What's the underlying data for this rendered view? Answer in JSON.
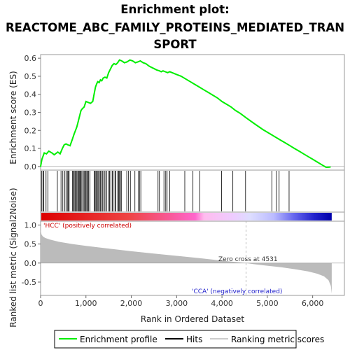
{
  "chart_data": {
    "type": "line",
    "title_lines": [
      "Enrichment plot:",
      "REACTOME_ABC_FAMILY_PROTEINS_MEDIATED_TRAN",
      "SPORT"
    ],
    "es_panel": {
      "ylabel": "Enrichment score (ES)",
      "ylim": [
        -0.02,
        0.62
      ],
      "yticks": [
        0.0,
        0.1,
        0.2,
        0.3,
        0.4,
        0.5,
        0.6
      ],
      "ytick_labels": [
        "0.0",
        "0.1",
        "0.2",
        "0.3",
        "0.4",
        "0.5",
        "0.6"
      ],
      "series": [
        {
          "name": "Enrichment profile",
          "color": "#00ee00",
          "x": [
            0,
            30,
            80,
            130,
            180,
            250,
            300,
            380,
            430,
            480,
            520,
            560,
            600,
            650,
            700,
            740,
            770,
            800,
            830,
            860,
            890,
            920,
            960,
            1000,
            1050,
            1100,
            1150,
            1180,
            1210,
            1240,
            1260,
            1290,
            1320,
            1350,
            1380,
            1420,
            1460,
            1500,
            1540,
            1580,
            1620,
            1660,
            1700,
            1740,
            1790,
            1850,
            1910,
            1970,
            2030,
            2090,
            2150,
            2200,
            2260,
            2320,
            2400,
            2480,
            2560,
            2620,
            2660,
            2700,
            2750,
            2800,
            2850,
            2900,
            3000,
            3100,
            3200,
            3300,
            3400,
            3500,
            3600,
            3700,
            3800,
            3900,
            4000,
            4100,
            4200,
            4300,
            4400,
            4531,
            4700,
            4900,
            5000,
            5100,
            5200,
            5300,
            5400,
            5500,
            5600,
            5700,
            5800,
            5900,
            6000,
            6100,
            6200,
            6300,
            6390
          ],
          "values": [
            0.0,
            0.04,
            0.075,
            0.07,
            0.085,
            0.075,
            0.065,
            0.08,
            0.07,
            0.1,
            0.12,
            0.125,
            0.12,
            0.115,
            0.15,
            0.18,
            0.2,
            0.22,
            0.25,
            0.28,
            0.31,
            0.32,
            0.33,
            0.36,
            0.355,
            0.35,
            0.36,
            0.4,
            0.44,
            0.46,
            0.47,
            0.465,
            0.48,
            0.475,
            0.49,
            0.495,
            0.49,
            0.52,
            0.54,
            0.56,
            0.57,
            0.565,
            0.575,
            0.59,
            0.585,
            0.575,
            0.58,
            0.59,
            0.585,
            0.575,
            0.58,
            0.585,
            0.575,
            0.57,
            0.555,
            0.545,
            0.535,
            0.53,
            0.525,
            0.53,
            0.525,
            0.52,
            0.525,
            0.52,
            0.51,
            0.5,
            0.485,
            0.47,
            0.455,
            0.44,
            0.425,
            0.41,
            0.395,
            0.38,
            0.36,
            0.345,
            0.33,
            0.31,
            0.295,
            0.27,
            0.24,
            0.205,
            0.19,
            0.175,
            0.16,
            0.145,
            0.13,
            0.115,
            0.1,
            0.085,
            0.07,
            0.055,
            0.04,
            0.025,
            0.01,
            -0.005,
            -0.003
          ]
        }
      ]
    },
    "hits": {
      "name": "Hits",
      "color": "#000000",
      "x": [
        20,
        50,
        70,
        120,
        160,
        370,
        450,
        490,
        530,
        560,
        590,
        610,
        630,
        700,
        720,
        740,
        760,
        780,
        800,
        820,
        840,
        860,
        870,
        890,
        910,
        940,
        960,
        980,
        1000,
        1020,
        1040,
        1060,
        1090,
        1180,
        1200,
        1220,
        1240,
        1250,
        1270,
        1300,
        1320,
        1350,
        1370,
        1400,
        1420,
        1460,
        1490,
        1520,
        1550,
        1580,
        1600,
        1640,
        1660,
        1700,
        1720,
        1740,
        1760,
        1780,
        1900,
        1940,
        1980,
        2080,
        2160,
        2180,
        2210,
        2590,
        2620,
        2720,
        2760,
        2790,
        2850,
        3180,
        3360,
        3510,
        3990,
        4240,
        4520,
        5100,
        5200,
        5260,
        5480
      ]
    },
    "rank_metric": {
      "name": "Ranking metric scores",
      "color": "#bbbbbb",
      "ylabel": "Ranked list metric (Signal2Noise)",
      "ylim": [
        -0.85,
        1.1
      ],
      "yticks": [
        -0.5,
        0.0,
        0.5,
        1.0
      ],
      "ytick_labels": [
        "-0.5",
        "0.0",
        "0.5",
        "1.0"
      ],
      "x": [
        0,
        5,
        20,
        50,
        100,
        200,
        400,
        700,
        1000,
        1500,
        2000,
        2500,
        3000,
        3500,
        3800,
        4000,
        4300,
        4531,
        4700,
        5000,
        5300,
        5600,
        5900,
        6100,
        6250,
        6350,
        6400,
        6420
      ],
      "values": [
        1.05,
        0.85,
        0.75,
        0.7,
        0.66,
        0.62,
        0.56,
        0.5,
        0.45,
        0.38,
        0.31,
        0.25,
        0.19,
        0.13,
        0.09,
        0.06,
        0.03,
        0.0,
        -0.03,
        -0.07,
        -0.11,
        -0.16,
        -0.22,
        -0.28,
        -0.35,
        -0.45,
        -0.6,
        -0.8
      ]
    },
    "xaxis": {
      "label": "Rank in Ordered Dataset",
      "xlim": [
        0,
        6700
      ],
      "ticks": [
        0,
        1000,
        2000,
        3000,
        4000,
        5000,
        6000
      ],
      "tick_labels": [
        "0",
        "1,000",
        "2,000",
        "3,000",
        "4,000",
        "5,000",
        "6,000"
      ]
    },
    "annotations": {
      "pos_label": "'HCC' (positively correlated)",
      "neg_label": "'CCA' (negatively correlated)",
      "zero_cross": "Zero cross at 4531",
      "zero_cross_rank": 4531,
      "pos_color": "#cc0000",
      "neg_color": "#2222cc"
    },
    "legend": {
      "position": "bottom",
      "items": [
        "Enrichment profile",
        "Hits",
        "Ranking metric scores"
      ]
    }
  }
}
